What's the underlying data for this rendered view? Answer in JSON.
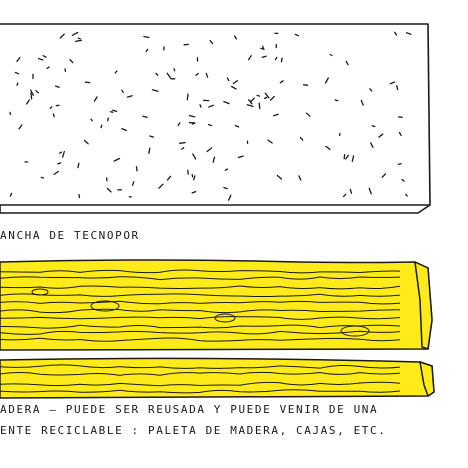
{
  "labels": {
    "foam_board": "ANCHA DE TECNOPOR",
    "wood_line1": "ADERA – PUEDE SER REUSADA Y PUEDE VENIR DE UNA",
    "wood_line2": "ENTE RECICLABLE :  PALETA DE MADERA, CAJAS, ETC."
  },
  "colors": {
    "ink": "#1a1a1a",
    "wood": "#ffeb1a",
    "foam": "#ffffff"
  },
  "icons": [
    "foam-board-illustration",
    "wood-plank-illustration"
  ]
}
